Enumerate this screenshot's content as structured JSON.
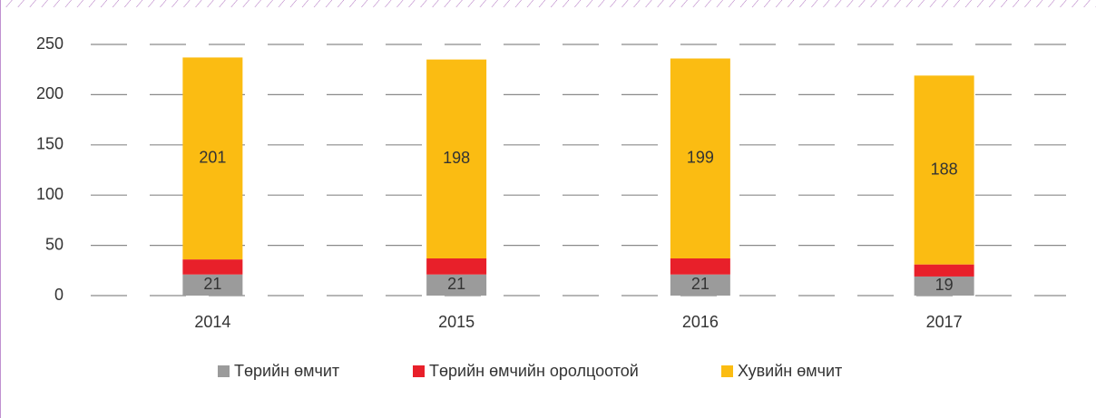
{
  "chart_data": {
    "type": "stacked_bar",
    "categories": [
      "2014",
      "2015",
      "2016",
      "2017"
    ],
    "series": [
      {
        "name": "Төрийн өмчит",
        "color": "#9b9b9b",
        "values": [
          21,
          21,
          21,
          19
        ]
      },
      {
        "name": "Төрийн өмчийн оролцоотой",
        "color": "#e8202a",
        "values": [
          15,
          16,
          16,
          12
        ]
      },
      {
        "name": "Хувийн өмчит",
        "color": "#fbbc12",
        "values": [
          201,
          198,
          199,
          188
        ]
      }
    ],
    "labeled_series": [
      0,
      2
    ],
    "ylim": [
      0,
      250
    ],
    "yticks": [
      0,
      50,
      100,
      150,
      200,
      250
    ],
    "grid": true,
    "legend": "bottom"
  }
}
